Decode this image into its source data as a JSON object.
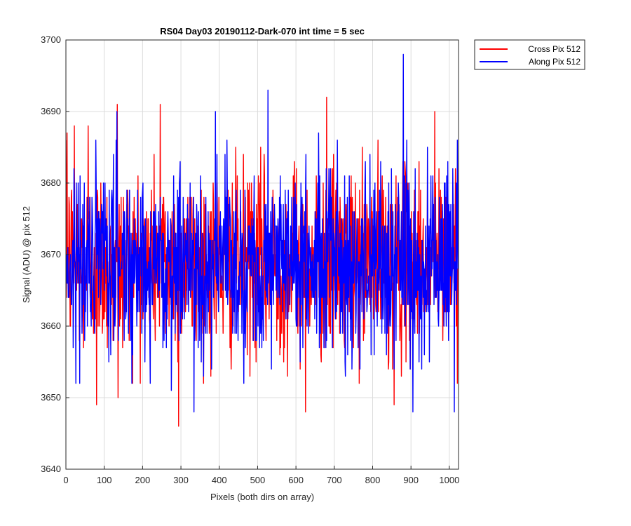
{
  "chart_data": {
    "type": "line",
    "title": "RS04 Day03 20190112-Dark-070 int time = 5 sec",
    "xlabel": "Pixels (both dirs on array)",
    "ylabel": "Signal (ADU) @ pix 512",
    "xlim": [
      0,
      1024
    ],
    "ylim": [
      3640,
      3700
    ],
    "xticks": [
      0,
      100,
      200,
      300,
      400,
      500,
      600,
      700,
      800,
      900,
      1000
    ],
    "yticks": [
      3640,
      3650,
      3660,
      3670,
      3680,
      3690,
      3700
    ],
    "grid": true,
    "legend_position": "outside-top-right",
    "series": [
      {
        "name": "Cross Pix 512",
        "color": "#ff0000",
        "mean": 3669,
        "noise_std": 6.5,
        "n_points": 1024,
        "spikes": [
          {
            "x": 3,
            "y": 3687
          },
          {
            "x": 22,
            "y": 3688
          },
          {
            "x": 58,
            "y": 3688
          },
          {
            "x": 80,
            "y": 3649
          },
          {
            "x": 134,
            "y": 3691
          },
          {
            "x": 136,
            "y": 3650
          },
          {
            "x": 246,
            "y": 3691
          },
          {
            "x": 294,
            "y": 3646
          },
          {
            "x": 625,
            "y": 3648
          },
          {
            "x": 680,
            "y": 3692
          },
          {
            "x": 856,
            "y": 3649
          },
          {
            "x": 962,
            "y": 3690
          }
        ]
      },
      {
        "name": "Along Pix 512",
        "color": "#0000ff",
        "mean": 3669,
        "noise_std": 6.5,
        "n_points": 1024,
        "spikes": [
          {
            "x": 133,
            "y": 3690
          },
          {
            "x": 275,
            "y": 3651
          },
          {
            "x": 334,
            "y": 3648
          },
          {
            "x": 390,
            "y": 3690
          },
          {
            "x": 527,
            "y": 3693
          },
          {
            "x": 659,
            "y": 3687
          },
          {
            "x": 880,
            "y": 3698
          },
          {
            "x": 905,
            "y": 3648
          },
          {
            "x": 1013,
            "y": 3648
          }
        ]
      }
    ]
  }
}
